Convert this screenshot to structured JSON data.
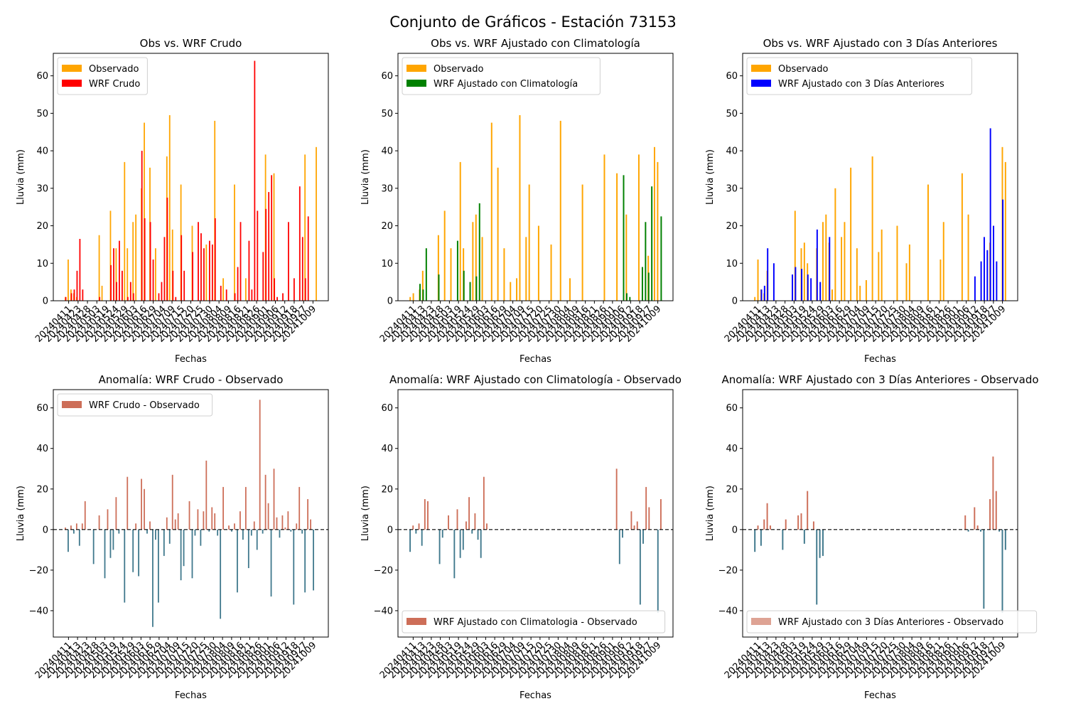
{
  "figure": {
    "suptitle": "Conjunto de Gráficos - Estación 73153"
  },
  "colors": {
    "observado": "#ffa500",
    "crudo": "#ff0000",
    "climatologia": "#008000",
    "tres_dias": "#0000ff",
    "anomalia_positiva": "#cd6e58",
    "anomalia_negativa": "#3f788c",
    "anomalia_leyenda_3dias": "#dea394",
    "zero_line": "#000000"
  },
  "chart_data": [
    {
      "type": "bar",
      "title": "Obs vs. WRF Crudo",
      "xlabel": "Fechas",
      "ylabel": "Lluvia (mm)",
      "ylim": [
        0,
        66
      ],
      "yticks": [
        0,
        10,
        20,
        30,
        40,
        50,
        60
      ],
      "xtick_labels": [
        "20240411",
        "20240423",
        "20240428",
        "20240503",
        "20240519",
        "20240524",
        "20240529",
        "20240603",
        "20240616",
        "20240629",
        "20240704",
        "20240709",
        "20240715",
        "20240720",
        "20240725",
        "20240730",
        "20240804",
        "20240809",
        "20240816",
        "20240821",
        "20240826",
        "20240901",
        "20240906",
        "20240912",
        "20240918",
        "20240927",
        "20241009"
      ],
      "legend": "top-left",
      "series": [
        {
          "name": "Observado",
          "color_key": "observado",
          "values": [
            1,
            11,
            3,
            2,
            1,
            0,
            0,
            0,
            0,
            0,
            0,
            0,
            17.5,
            4,
            0,
            0,
            24,
            0,
            14,
            0,
            0,
            37,
            14,
            0,
            21,
            23,
            0,
            30,
            47.5,
            0,
            35.5,
            0,
            14,
            0,
            0,
            0,
            38.5,
            49.5,
            19,
            0,
            0,
            31,
            0,
            0,
            0,
            20,
            0,
            0,
            0,
            0,
            15,
            0,
            0,
            48,
            0,
            0,
            6,
            0,
            0,
            0,
            31,
            0,
            0,
            0,
            6,
            0,
            0,
            0,
            0,
            0,
            0,
            39,
            0,
            0,
            34,
            0,
            0,
            0,
            0,
            0,
            0,
            0,
            0,
            0,
            0,
            39,
            0,
            0,
            0,
            41
          ]
        },
        {
          "name": "WRF Crudo",
          "color_key": "crudo",
          "values": [
            1,
            0,
            2,
            3,
            8,
            16.5,
            3,
            0,
            0,
            0,
            0,
            0,
            1,
            0,
            0,
            0,
            9.5,
            14,
            5,
            16,
            8,
            0,
            1,
            5,
            2,
            0,
            0,
            40,
            22,
            0,
            21,
            11,
            0,
            2,
            5,
            17,
            27.5,
            0,
            8,
            1,
            0,
            17.5,
            8,
            0,
            0,
            13,
            0,
            21,
            18,
            14,
            0,
            16,
            15,
            22,
            0,
            4,
            0,
            3,
            0,
            0,
            2,
            9,
            21,
            0,
            0,
            16,
            3,
            64,
            24,
            0,
            13,
            24.5,
            29,
            33.5,
            6,
            1,
            0,
            2,
            0,
            21,
            0,
            6,
            0,
            30.5,
            17,
            6,
            22.5,
            0,
            0,
            0
          ]
        }
      ]
    },
    {
      "type": "bar",
      "title": "Obs vs. WRF Ajustado con Climatología",
      "xlabel": "Fechas",
      "ylabel": "Lluvia (mm)",
      "ylim": [
        0,
        66
      ],
      "yticks": [
        0,
        10,
        20,
        30,
        40,
        50,
        60
      ],
      "xtick_labels": [
        "20240411",
        "20240413",
        "20240423",
        "20240428",
        "20240503",
        "20240519",
        "20240524",
        "20240529",
        "20240603",
        "20240616",
        "20240629",
        "20240704",
        "20240709",
        "20240715",
        "20240720",
        "20240725",
        "20240730",
        "20240804",
        "20240809",
        "20240816",
        "20240821",
        "20240826",
        "20240901",
        "20240906",
        "20240912",
        "20240918",
        "20240927",
        "20241009"
      ],
      "legend": "top-left",
      "series": [
        {
          "name": "Observado",
          "color_key": "observado",
          "values": [
            1,
            2,
            0,
            3,
            8,
            0,
            0,
            0,
            0,
            17.5,
            0,
            24,
            0,
            14,
            0,
            0,
            37,
            14,
            0,
            0,
            21,
            23,
            0,
            17,
            0,
            0,
            47.5,
            0,
            35.5,
            0,
            14,
            0,
            5,
            0,
            6,
            49.5,
            0,
            17,
            31,
            0,
            0,
            20,
            0,
            0,
            0,
            15,
            0,
            0,
            48,
            0,
            0,
            6,
            0,
            0,
            0,
            31,
            0,
            0,
            0,
            0,
            0,
            0,
            39,
            0,
            0,
            0,
            34,
            0,
            0,
            23,
            0,
            0,
            0,
            39,
            0,
            0,
            12,
            0,
            41,
            37
          ]
        },
        {
          "name": "WRF Ajustado con Climatología",
          "color_key": "climatologia",
          "values": [
            0,
            0,
            0,
            4.5,
            3,
            14,
            0,
            0,
            0,
            7,
            0,
            0,
            0,
            0,
            0,
            16,
            0,
            8,
            0,
            5,
            0,
            6.5,
            26,
            0,
            0,
            0,
            0,
            0,
            0,
            0,
            0,
            0,
            0,
            0,
            0,
            0,
            0,
            0,
            0,
            0,
            0,
            0,
            0,
            0,
            0,
            0,
            0,
            0,
            0,
            0,
            0,
            0,
            0,
            0,
            0,
            0,
            0,
            0,
            0,
            0,
            0,
            0,
            0,
            0,
            0,
            0,
            0,
            0,
            33.5,
            2,
            1,
            0,
            0,
            0,
            9,
            21,
            7.5,
            30.5,
            0,
            0,
            22.5
          ]
        }
      ]
    },
    {
      "type": "bar",
      "title": "Obs vs. WRF Ajustado con 3 Días Anteriores",
      "xlabel": "Fechas",
      "ylabel": "Lluvia (mm)",
      "ylim": [
        0,
        66
      ],
      "yticks": [
        0,
        10,
        20,
        30,
        40,
        50,
        60
      ],
      "xtick_labels": [
        "20240411",
        "20240413",
        "20240423",
        "20240428",
        "20240503",
        "20240519",
        "20240524",
        "20240529",
        "20240603",
        "20240616",
        "20240629",
        "20240704",
        "20240709",
        "20240715",
        "20240720",
        "20240725",
        "20240730",
        "20240804",
        "20240809",
        "20240816",
        "20240821",
        "20240826",
        "20240901",
        "20240906",
        "20240912",
        "20240918",
        "20240927",
        "20241009"
      ],
      "legend": "top-left",
      "series": [
        {
          "name": "Observado",
          "color_key": "observado",
          "values": [
            1,
            11,
            3,
            2,
            8,
            0,
            0,
            0,
            0,
            0,
            0,
            0,
            0,
            24,
            0,
            14,
            15.5,
            10,
            0,
            0,
            14,
            0,
            21,
            23,
            15.5,
            3,
            30,
            0,
            17,
            21,
            0,
            35.5,
            0,
            14,
            4,
            0,
            5.5,
            0,
            38.5,
            0,
            13,
            19,
            0,
            0,
            0,
            0,
            20,
            0,
            0,
            10,
            15,
            0,
            0,
            0,
            0,
            0,
            31,
            0,
            0,
            0,
            11,
            21,
            0,
            0,
            0,
            0,
            0,
            34,
            0,
            23,
            0,
            0,
            0,
            0,
            0,
            0,
            15.5,
            0,
            0,
            0,
            41,
            37
          ]
        },
        {
          "name": "WRF Ajustado con 3 Días Anteriores",
          "color_key": "tres_dias",
          "values": [
            0,
            0,
            3,
            4,
            14,
            0,
            10,
            0,
            0,
            0,
            0,
            0,
            7,
            9,
            0,
            8.5,
            0,
            7,
            6,
            0,
            19,
            5,
            0,
            0,
            17,
            0,
            0,
            0,
            0,
            0,
            0,
            0,
            0,
            0,
            0,
            0,
            0,
            0,
            0,
            0,
            0,
            0,
            0,
            0,
            0,
            0,
            0,
            0,
            0,
            0,
            0,
            0,
            0,
            0,
            0,
            0,
            0,
            0,
            0,
            0,
            0,
            0,
            0,
            0,
            0,
            0,
            0,
            0,
            0,
            0,
            0,
            6.5,
            0,
            10.5,
            17,
            13.5,
            46,
            20,
            10.5,
            0,
            27
          ]
        }
      ]
    },
    {
      "type": "bar",
      "title": "Anomalía: WRF Crudo - Observado",
      "xlabel": "Fechas",
      "ylabel": "Lluvia (mm)",
      "ylim": [
        -53,
        69
      ],
      "yticks": [
        -40,
        -20,
        0,
        20,
        40,
        60
      ],
      "zero_line": true,
      "xtick_labels": [
        "20240411",
        "20240413",
        "20240423",
        "20240428",
        "20240503",
        "20240519",
        "20240524",
        "20240529",
        "20240603",
        "20240616",
        "20240629",
        "20240704",
        "20240709",
        "20240715",
        "20240720",
        "20240725",
        "20240730",
        "20240804",
        "20240809",
        "20240816",
        "20240821",
        "20240826",
        "20240901",
        "20240906",
        "20240912",
        "20240918",
        "20240927",
        "20241009"
      ],
      "legend": "top-left",
      "series": [
        {
          "name": "WRF Crudo - Observado",
          "color_key": "anomalia_positiva",
          "values": [
            1,
            -11,
            2,
            -2,
            3,
            -8,
            3,
            14,
            0,
            0,
            -17,
            0,
            7,
            0,
            -24,
            10,
            -14,
            -10,
            16,
            -2,
            0,
            -36,
            26,
            0,
            -21,
            3,
            -23,
            25,
            20,
            -2,
            4,
            -48,
            -5,
            -36,
            0,
            -13,
            6,
            -7,
            27,
            5,
            8,
            -25,
            -18,
            0,
            14,
            -24,
            -3,
            10,
            -8,
            9,
            34,
            -1,
            11,
            8,
            -3,
            -44,
            21,
            0,
            2,
            -1,
            3,
            -31,
            9,
            -5,
            21,
            -19,
            -3,
            4,
            -10,
            64,
            -2,
            27,
            13,
            -33,
            30,
            6,
            -4,
            7,
            1,
            9,
            -1,
            -37,
            3,
            21,
            -2,
            -31,
            15,
            5,
            -30,
            0
          ]
        }
      ]
    },
    {
      "type": "bar",
      "title": "Anomalía: WRF Ajustado con Climatología - Observado",
      "xlabel": "Fechas",
      "ylabel": "Lluvia (mm)",
      "ylim": [
        -53,
        69
      ],
      "yticks": [
        -40,
        -20,
        0,
        20,
        40,
        60
      ],
      "zero_line": true,
      "xtick_labels": [
        "20240411",
        "20240413",
        "20240423",
        "20240428",
        "20240503",
        "20240519",
        "20240524",
        "20240529",
        "20240603",
        "20240616",
        "20240629",
        "20240704",
        "20240709",
        "20240715",
        "20240720",
        "20240725",
        "20240730",
        "20240804",
        "20240809",
        "20240816",
        "20240821",
        "20240826",
        "20240901",
        "20240906",
        "20240912",
        "20240918",
        "20240927",
        "20241009"
      ],
      "legend": "bottom-left",
      "series": [
        {
          "name": "WRF Ajustado con Climatologia - Observado",
          "color_key": "anomalia_positiva",
          "values": [
            -11,
            2,
            -2,
            3,
            -8,
            15,
            14,
            0,
            0,
            0,
            -17,
            -4,
            0,
            7,
            0,
            -24,
            10,
            -14,
            -10,
            4,
            16,
            -2,
            8,
            -5,
            -14,
            26,
            3,
            0,
            0,
            0,
            0,
            0,
            0,
            0,
            0,
            0,
            0,
            0,
            0,
            0,
            0,
            0,
            0,
            0,
            0,
            0,
            0,
            0,
            0,
            0,
            0,
            0,
            0,
            0,
            0,
            0,
            0,
            0,
            0,
            0,
            0,
            0,
            0,
            0,
            0,
            0,
            0,
            0,
            0,
            0,
            30,
            -17,
            -4,
            0,
            0,
            9,
            2,
            4,
            -37,
            -7,
            21,
            11,
            0,
            0,
            -41,
            15
          ]
        }
      ]
    },
    {
      "type": "bar",
      "title": "Anomalía: WRF Ajustado con 3 Días Anteriores - Observado",
      "xlabel": "Fechas",
      "ylabel": "Lluvia (mm)",
      "ylim": [
        -53,
        69
      ],
      "yticks": [
        -40,
        -20,
        0,
        20,
        40,
        60
      ],
      "zero_line": true,
      "xtick_labels": [
        "20240411",
        "20240413",
        "20240423",
        "20240428",
        "20240503",
        "20240519",
        "20240524",
        "20240529",
        "20240603",
        "20240616",
        "20240629",
        "20240704",
        "20240709",
        "20240715",
        "20240720",
        "20240725",
        "20240730",
        "20240804",
        "20240809",
        "20240816",
        "20240821",
        "20240826",
        "20240901",
        "20240906",
        "20240912",
        "20240918",
        "20240927",
        "20241009"
      ],
      "legend": "bottom-left",
      "series": [
        {
          "name": "WRF Ajustado con 3 Días Anteriores - Observado",
          "color_key": "anomalia_positiva",
          "legend_color_key": "anomalia_leyenda_3dias",
          "values": [
            -11,
            2,
            -8,
            5,
            13,
            2,
            0,
            0,
            0,
            -10,
            5,
            0,
            0,
            0,
            7,
            8,
            -7,
            19,
            0,
            4,
            -37,
            -14,
            -13,
            0,
            0,
            0,
            0,
            0,
            0,
            0,
            0,
            0,
            0,
            0,
            0,
            0,
            0,
            0,
            0,
            0,
            0,
            0,
            0,
            0,
            0,
            0,
            0,
            0,
            0,
            0,
            0,
            0,
            0,
            0,
            0,
            0,
            0,
            0,
            0,
            0,
            0,
            0,
            0,
            0,
            0,
            0,
            0,
            0,
            7,
            -1,
            0,
            11,
            2,
            -1,
            -39,
            0,
            15,
            36,
            19,
            -1,
            -41,
            -10
          ]
        }
      ]
    }
  ]
}
